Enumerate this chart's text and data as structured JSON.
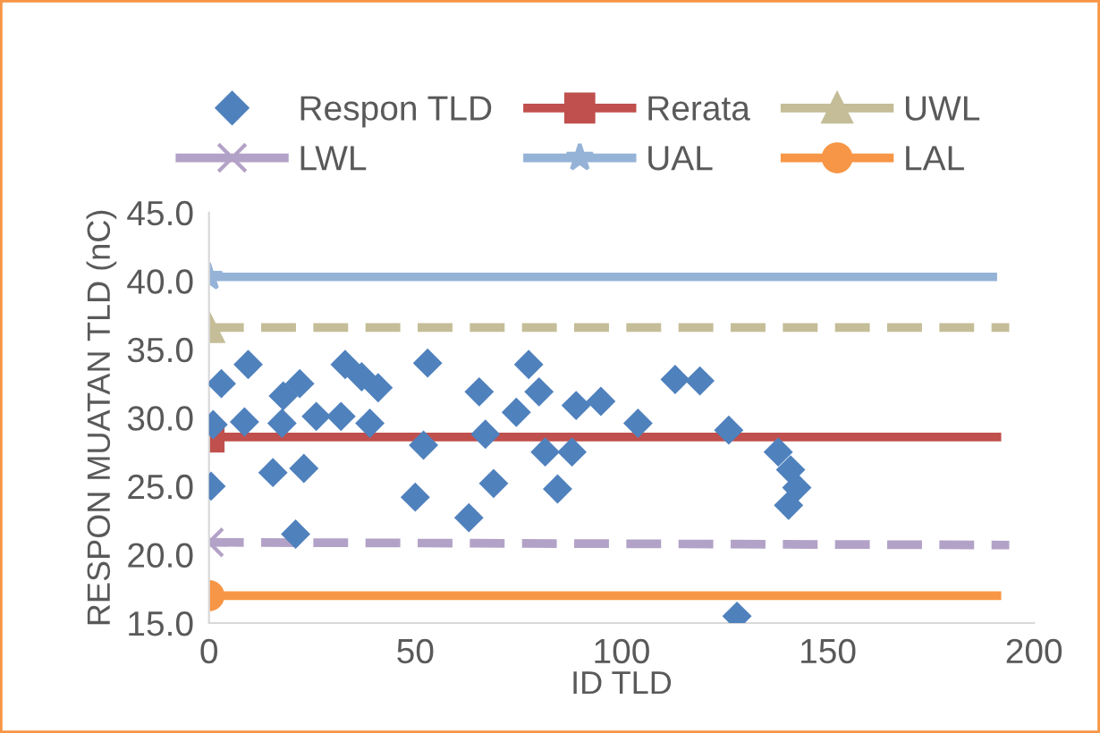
{
  "chart_data": {
    "type": "scatter",
    "xlabel": "ID TLD",
    "ylabel": "RESPON MUATAN TLD (nC)",
    "xlim": [
      0,
      200
    ],
    "xticks": [
      0,
      50,
      100,
      150,
      200
    ],
    "ylim": [
      15,
      45
    ],
    "yticks": [
      {
        "value": 15,
        "label": "15.0"
      },
      {
        "value": 20,
        "label": "20.0"
      },
      {
        "value": 25,
        "label": "25.0"
      },
      {
        "value": 30,
        "label": "30.0"
      },
      {
        "value": 35,
        "label": "35.0"
      },
      {
        "value": 40,
        "label": "40.0"
      },
      {
        "value": 45,
        "label": "45.0"
      }
    ],
    "grid": false,
    "legend": "top",
    "series": [
      {
        "name": "Respon TLD",
        "marker": "diamond",
        "color": "#4f81bd",
        "x": [
          1,
          3,
          9.5,
          8.6,
          0.5,
          15.5,
          17.7,
          18,
          22,
          21,
          23,
          26,
          32,
          33,
          37,
          41,
          39,
          50,
          52,
          53,
          63,
          65.5,
          67,
          69,
          74.5,
          77.5,
          80,
          81.5,
          84.5,
          88,
          89,
          95,
          104,
          113,
          119,
          126,
          138,
          141,
          142.5,
          140.5,
          128
        ],
        "values": [
          29.5,
          32.5,
          33.9,
          29.7,
          25.0,
          26.0,
          29.6,
          31.6,
          32.5,
          21.5,
          26.3,
          30.1,
          30.1,
          33.9,
          33.0,
          32.2,
          29.6,
          24.2,
          28.0,
          34.0,
          22.7,
          31.9,
          28.8,
          25.2,
          30.4,
          33.9,
          31.9,
          27.5,
          24.8,
          27.5,
          30.9,
          31.2,
          29.6,
          32.8,
          32.7,
          29.1,
          27.5,
          26.2,
          24.9,
          23.6,
          15.5
        ]
      },
      {
        "name": "Rerata",
        "type": "line",
        "marker": "square",
        "line_style": "solid",
        "color": "#c0504d",
        "x": [
          0,
          191
        ],
        "values": [
          28.6,
          28.6
        ]
      },
      {
        "name": "UWL",
        "type": "line",
        "marker": "triangle",
        "line_style": "dashed",
        "color": "#c4bd97",
        "x": [
          0,
          194
        ],
        "values": [
          36.6,
          36.6
        ]
      },
      {
        "name": "LWL",
        "type": "line",
        "marker": "cross",
        "line_style": "dashed",
        "color": "#b3a2c7",
        "x": [
          0,
          194
        ],
        "values": [
          20.9,
          20.7
        ]
      },
      {
        "name": "UAL",
        "type": "line",
        "marker": "star",
        "line_style": "solid",
        "color": "#95b3d7",
        "x": [
          0,
          190
        ],
        "values": [
          40.3,
          40.3
        ]
      },
      {
        "name": "LAL",
        "type": "line",
        "marker": "circle",
        "line_style": "solid",
        "color": "#f79646",
        "x": [
          0,
          191
        ],
        "values": [
          17.0,
          17.0
        ]
      }
    ]
  }
}
